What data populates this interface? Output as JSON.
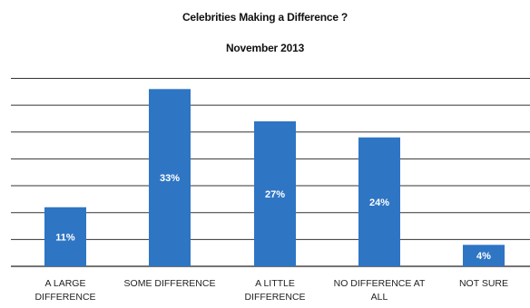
{
  "chart_data": {
    "type": "bar",
    "title": "Celebrities Making a Difference ?",
    "subtitle": "November 2013",
    "categories": [
      [
        "A LARGE",
        "DIFFERENCE"
      ],
      [
        "SOME DIFFERENCE"
      ],
      [
        "A LITTLE",
        "DIFFERENCE"
      ],
      [
        "NO DIFFERENCE AT",
        "ALL"
      ],
      [
        "NOT SURE"
      ]
    ],
    "values": [
      11,
      33,
      27,
      24,
      4
    ],
    "data_labels": [
      "11%",
      "33%",
      "27%",
      "24%",
      "4%"
    ],
    "ylim": [
      0,
      35
    ],
    "grid": true,
    "bar_color": "#2e75c4",
    "label_color": "#ffffff"
  }
}
